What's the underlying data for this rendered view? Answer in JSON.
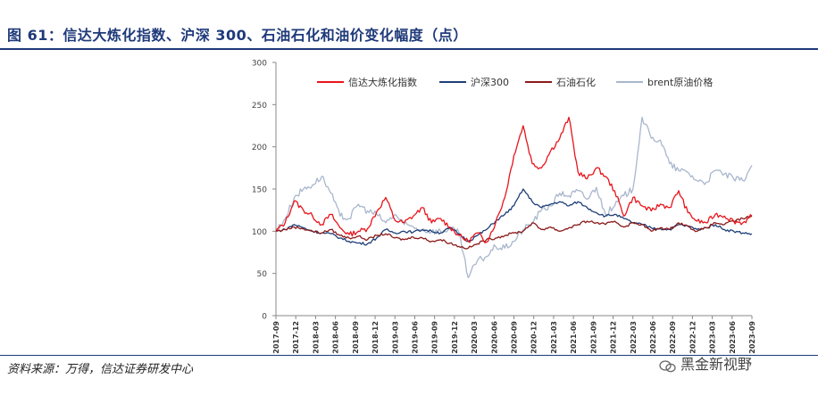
{
  "title": "图 61：信达大炼化指数、沪深 300、石油石化和油价变化幅度（点）",
  "source": "资料来源：万得，信达证券研发中心",
  "brand": "黑金新视野",
  "chart_data": {
    "type": "line",
    "title": "",
    "xlabel": "",
    "ylabel": "",
    "ylim": [
      0,
      300
    ],
    "yticks": [
      0,
      50,
      100,
      150,
      200,
      250,
      300
    ],
    "legend_position": "top",
    "x_tick_labels": [
      "2017-09",
      "2017-12",
      "2018-03",
      "2018-06",
      "2018-09",
      "2018-12",
      "2019-03",
      "2019-06",
      "2019-09",
      "2019-12",
      "2020-03",
      "2020-06",
      "2020-09",
      "2020-12",
      "2021-03",
      "2021-06",
      "2021-09",
      "2021-12",
      "2022-03",
      "2022-06",
      "2022-09",
      "2022-12",
      "2023-03",
      "2023-06",
      "2023-09"
    ],
    "series": [
      {
        "name": "信达大炼化指数",
        "color": "#e8141b",
        "values": [
          100,
          110,
          136,
          125,
          118,
          108,
          120,
          104,
          96,
          100,
          103,
          123,
          140,
          113,
          110,
          118,
          128,
          110,
          115,
          105,
          95,
          88,
          98,
          87,
          110,
          140,
          190,
          225,
          180,
          175,
          195,
          210,
          235,
          170,
          162,
          175,
          165,
          148,
          118,
          140,
          130,
          124,
          132,
          128,
          148,
          122,
          112,
          110,
          120,
          118,
          112,
          110,
          118
        ]
      },
      {
        "name": "沪深300",
        "color": "#1e3f78",
        "values": [
          100,
          102,
          108,
          104,
          100,
          98,
          97,
          92,
          88,
          86,
          85,
          92,
          102,
          98,
          100,
          99,
          102,
          100,
          98,
          104,
          97,
          88,
          95,
          102,
          112,
          120,
          130,
          150,
          135,
          128,
          132,
          135,
          130,
          135,
          128,
          122,
          118,
          120,
          115,
          110,
          108,
          104,
          103,
          102,
          108,
          106,
          102,
          104,
          108,
          102,
          100,
          98,
          97
        ]
      },
      {
        "name": "石油石化",
        "color": "#8b1a1a",
        "values": [
          100,
          102,
          105,
          103,
          100,
          98,
          102,
          95,
          92,
          94,
          90,
          95,
          97,
          92,
          90,
          93,
          92,
          88,
          90,
          86,
          82,
          80,
          85,
          90,
          92,
          95,
          98,
          100,
          110,
          102,
          105,
          100,
          104,
          108,
          112,
          110,
          108,
          112,
          105,
          110,
          108,
          100,
          104,
          102,
          110,
          106,
          100,
          104,
          110,
          108,
          112,
          115,
          118
        ]
      },
      {
        "name": "brent原油价格",
        "color": "#a9b7cc",
        "values": [
          100,
          115,
          140,
          150,
          155,
          165,
          145,
          118,
          115,
          132,
          124,
          120,
          110,
          120,
          108,
          105,
          102,
          100,
          100,
          103,
          98,
          45,
          65,
          70,
          82,
          80,
          88,
          102,
          110,
          125,
          130,
          145,
          142,
          148,
          138,
          152,
          120,
          130,
          142,
          150,
          235,
          210,
          208,
          180,
          172,
          170,
          160,
          158,
          172,
          168,
          162,
          160,
          178
        ]
      }
    ]
  }
}
